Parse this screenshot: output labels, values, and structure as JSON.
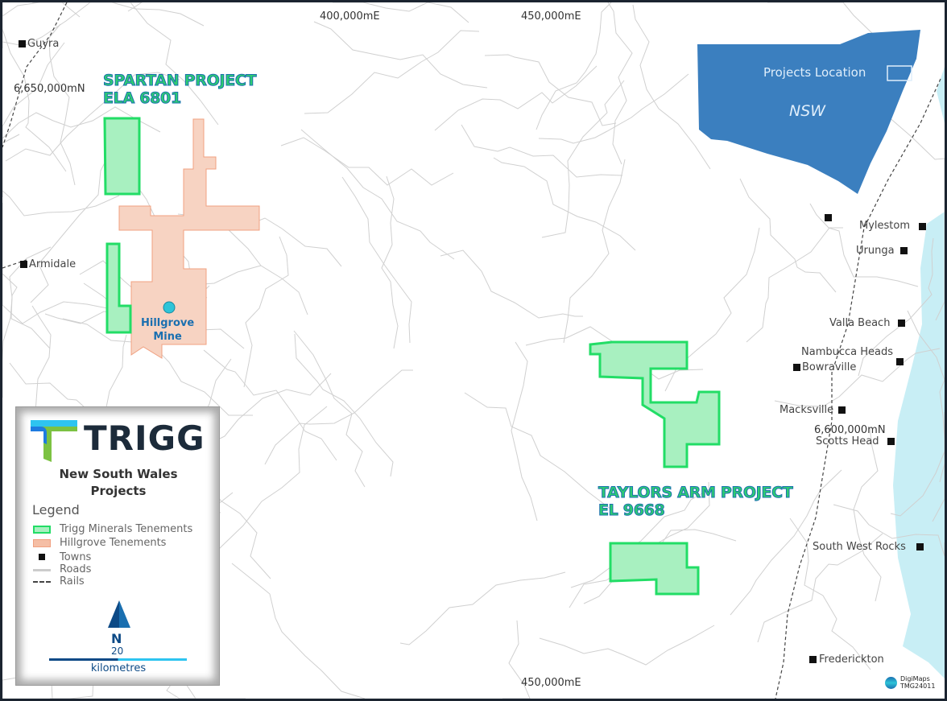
{
  "grid_labels": {
    "e400": "400,000mE",
    "e450_top": "450,000mE",
    "e450_bottom": "450,000mE",
    "n6650": "6,650,000mN",
    "n6600": "6,600,000mN"
  },
  "projects": {
    "spartan_name": "SPARTAN PROJECT",
    "spartan_id": "ELA 6801",
    "taylors_name": "TAYLORS ARM PROJECT",
    "taylors_id": "EL 9668"
  },
  "mine": {
    "line1": "Hillgrove",
    "line2": "Mine"
  },
  "towns": [
    "Guyra",
    "Armidale",
    "Mylestom",
    "Urunga",
    "Valla Beach",
    "Nambucca Heads",
    "Bowraville",
    "Macksville",
    "Scotts Head",
    "South West Rocks",
    "Frederickton"
  ],
  "inset": {
    "title": "Projects Location",
    "state": "NSW"
  },
  "legend": {
    "brand": "TRIGG",
    "title_line1": "New South Wales",
    "title_line2": "Projects",
    "heading": "Legend",
    "items": [
      "Trigg Minerals Tenements",
      "Hillgrove Tenements",
      "Towns",
      "Roads",
      "Rails"
    ],
    "north": "N",
    "scale_value": "20",
    "scale_unit": "kilometres"
  },
  "credit": {
    "line1": "DigiMaps",
    "line2": "TMG24011"
  },
  "colors": {
    "trigg_fill": "#a8f0c0",
    "trigg_edge": "#22dd66",
    "hillgrove_fill": "#f7d3c2",
    "hillgrove_edge": "#f0a080",
    "nsw": "#3b7fbf",
    "sea": "#c8eef5",
    "brand_dark": "#1c2b3a",
    "accent_blue": "#0d5a9e"
  }
}
